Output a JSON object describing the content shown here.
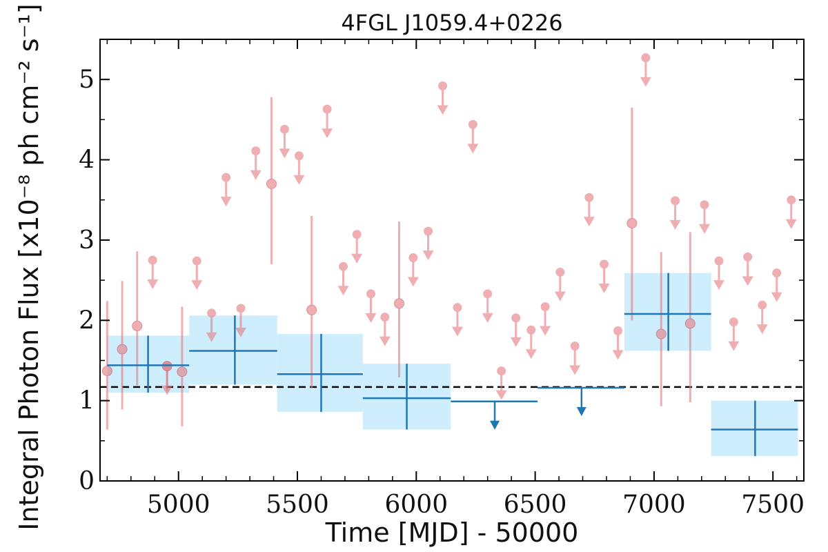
{
  "chart_data": {
    "type": "scatter",
    "title": "4FGL J1059.4+0226",
    "xlabel": "Time [MJD] - 50000",
    "ylabel": "Integral Photon Flux [x10⁻⁸ ph cm⁻² s⁻¹]",
    "xlim": [
      4670,
      7630
    ],
    "ylim": [
      0,
      5.5
    ],
    "x_ticks": [
      5000,
      5500,
      6000,
      6500,
      7000,
      7500
    ],
    "y_ticks": [
      0,
      1,
      2,
      3,
      4,
      5
    ],
    "reference_line": {
      "y": 1.17,
      "style": "dashed",
      "color": "#000000"
    },
    "colors": {
      "fine_bins": "#e57b80",
      "coarse_bins": "#1f77b4",
      "coarse_band": "#b3e5fc"
    },
    "series": [
      {
        "key": "fine",
        "detections": [
          {
            "x": 4700,
            "y": 1.37,
            "ylo": 0.64,
            "yhi": 2.24
          },
          {
            "x": 4763,
            "y": 1.64,
            "ylo": 0.89,
            "yhi": 2.49
          },
          {
            "x": 4826,
            "y": 1.93,
            "ylo": 1.19,
            "yhi": 2.86
          },
          {
            "x": 4952,
            "y": 1.43,
            "ylo": 1.12,
            "yhi": 1.43
          },
          {
            "x": 5015,
            "y": 1.36,
            "ylo": 0.68,
            "yhi": 2.17
          },
          {
            "x": 5391,
            "y": 3.7,
            "ylo": 2.7,
            "yhi": 4.78
          },
          {
            "x": 5560,
            "y": 2.13,
            "ylo": 1.16,
            "yhi": 3.3
          },
          {
            "x": 5928,
            "y": 2.21,
            "ylo": 1.29,
            "yhi": 3.23
          },
          {
            "x": 6907,
            "y": 3.21,
            "ylo": 2.0,
            "yhi": 4.65
          },
          {
            "x": 7030,
            "y": 1.83,
            "ylo": 0.93,
            "yhi": 2.85
          },
          {
            "x": 7152,
            "y": 1.96,
            "ylo": 0.98,
            "yhi": 3.1
          }
        ],
        "upper_limits": [
          {
            "x": 4952,
            "y": 1.43
          },
          {
            "x": 4891,
            "y": 2.75
          },
          {
            "x": 5077,
            "y": 2.74
          },
          {
            "x": 5139,
            "y": 2.09
          },
          {
            "x": 5200,
            "y": 3.78
          },
          {
            "x": 5262,
            "y": 2.15
          },
          {
            "x": 5325,
            "y": 4.11
          },
          {
            "x": 5446,
            "y": 4.38
          },
          {
            "x": 5507,
            "y": 4.05
          },
          {
            "x": 5625,
            "y": 4.63
          },
          {
            "x": 5693,
            "y": 2.67
          },
          {
            "x": 5750,
            "y": 3.07
          },
          {
            "x": 5809,
            "y": 2.33
          },
          {
            "x": 5868,
            "y": 2.04
          },
          {
            "x": 5987,
            "y": 2.78
          },
          {
            "x": 6050,
            "y": 3.11
          },
          {
            "x": 6111,
            "y": 4.92
          },
          {
            "x": 6173,
            "y": 2.16
          },
          {
            "x": 6238,
            "y": 4.44
          },
          {
            "x": 6300,
            "y": 2.33
          },
          {
            "x": 6358,
            "y": 1.37
          },
          {
            "x": 6419,
            "y": 2.03
          },
          {
            "x": 6483,
            "y": 1.88
          },
          {
            "x": 6542,
            "y": 2.17
          },
          {
            "x": 6605,
            "y": 2.6
          },
          {
            "x": 6667,
            "y": 1.68
          },
          {
            "x": 6727,
            "y": 3.53
          },
          {
            "x": 6790,
            "y": 2.7
          },
          {
            "x": 6848,
            "y": 1.87
          },
          {
            "x": 6965,
            "y": 5.27
          },
          {
            "x": 7089,
            "y": 3.49
          },
          {
            "x": 7212,
            "y": 3.44
          },
          {
            "x": 7273,
            "y": 2.74
          },
          {
            "x": 7335,
            "y": 1.98
          },
          {
            "x": 7394,
            "y": 2.79
          },
          {
            "x": 7455,
            "y": 2.19
          },
          {
            "x": 7516,
            "y": 2.59
          },
          {
            "x": 7577,
            "y": 3.5
          }
        ]
      },
      {
        "key": "coarse",
        "detections": [
          {
            "x0": 4700,
            "x1": 5045,
            "xc": 4872,
            "y": 1.44,
            "ylo": 1.1,
            "yhi": 1.81
          },
          {
            "x0": 5045,
            "x1": 5415,
            "xc": 5237,
            "y": 1.62,
            "ylo": 1.2,
            "yhi": 2.06
          },
          {
            "x0": 5415,
            "x1": 5775,
            "xc": 5600,
            "y": 1.33,
            "ylo": 0.86,
            "yhi": 1.83
          },
          {
            "x0": 5775,
            "x1": 6145,
            "xc": 5960,
            "y": 1.03,
            "ylo": 0.64,
            "yhi": 1.46
          },
          {
            "x0": 6875,
            "x1": 7240,
            "xc": 7060,
            "y": 2.08,
            "ylo": 1.62,
            "yhi": 2.59
          },
          {
            "x0": 7240,
            "x1": 7605,
            "xc": 7425,
            "y": 0.64,
            "ylo": 0.31,
            "yhi": 1.0
          }
        ],
        "upper_limits": [
          {
            "x0": 6145,
            "x1": 6510,
            "xc": 6330,
            "y": 0.99
          },
          {
            "x0": 6510,
            "x1": 6875,
            "xc": 6695,
            "y": 1.16
          }
        ]
      }
    ]
  }
}
